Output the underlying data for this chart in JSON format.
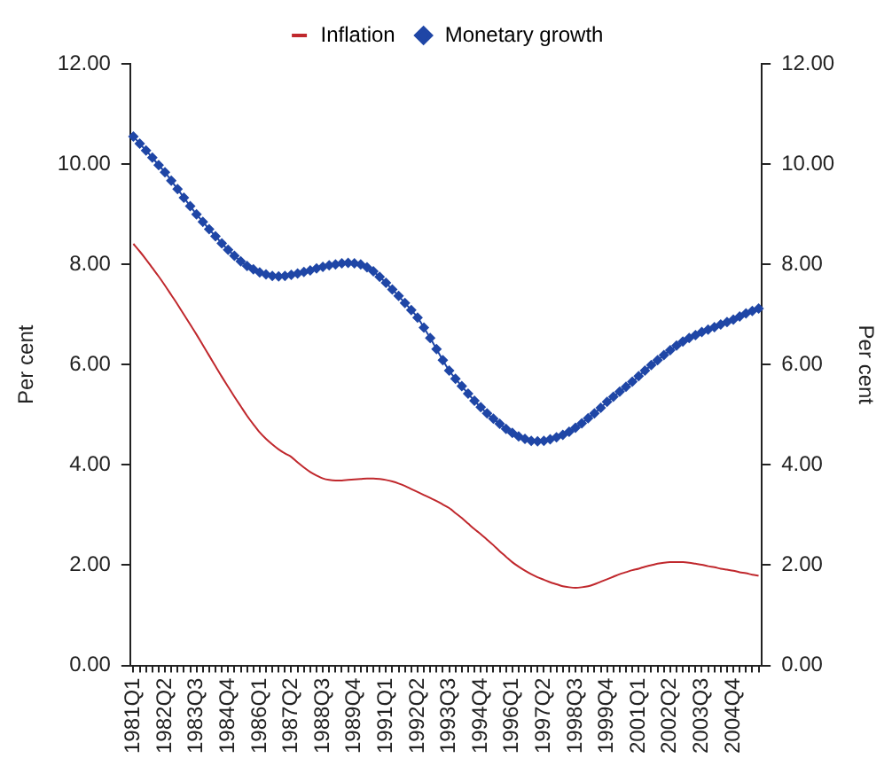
{
  "chart_data": {
    "type": "line",
    "categories": [
      "1981Q1",
      null,
      null,
      null,
      null,
      "1982Q2",
      null,
      null,
      null,
      null,
      "1983Q3",
      null,
      null,
      null,
      null,
      "1984Q4",
      null,
      null,
      null,
      null,
      "1986Q1",
      null,
      null,
      null,
      null,
      "1987Q2",
      null,
      null,
      null,
      null,
      "1988Q3",
      null,
      null,
      null,
      null,
      "1989Q4",
      null,
      null,
      null,
      null,
      "1991Q1",
      null,
      null,
      null,
      null,
      "1992Q2",
      null,
      null,
      null,
      null,
      "1993Q3",
      null,
      null,
      null,
      null,
      "1994Q4",
      null,
      null,
      null,
      null,
      "1996Q1",
      null,
      null,
      null,
      null,
      "1997Q2",
      null,
      null,
      null,
      null,
      "1998Q3",
      null,
      null,
      null,
      null,
      "1999Q4",
      null,
      null,
      null,
      null,
      "2001Q1",
      null,
      null,
      null,
      null,
      "2002Q2",
      null,
      null,
      null,
      null,
      "2003Q3",
      null,
      null,
      null,
      null,
      "2004Q4",
      null,
      null,
      null,
      null
    ],
    "series": [
      {
        "name": "Inflation",
        "color": "#c0282d",
        "marker": "none",
        "values": [
          8.41,
          8.26,
          8.1,
          7.93,
          7.76,
          7.58,
          7.39,
          7.2,
          7.0,
          6.8,
          6.6,
          6.39,
          6.18,
          5.97,
          5.76,
          5.56,
          5.36,
          5.17,
          4.98,
          4.81,
          4.65,
          4.52,
          4.41,
          4.31,
          4.23,
          4.16,
          4.05,
          3.95,
          3.86,
          3.79,
          3.73,
          3.7,
          3.69,
          3.69,
          3.7,
          3.71,
          3.72,
          3.73,
          3.73,
          3.72,
          3.7,
          3.67,
          3.63,
          3.58,
          3.52,
          3.46,
          3.4,
          3.34,
          3.28,
          3.21,
          3.14,
          3.04,
          2.94,
          2.83,
          2.72,
          2.62,
          2.51,
          2.4,
          2.28,
          2.17,
          2.06,
          1.97,
          1.89,
          1.82,
          1.76,
          1.71,
          1.66,
          1.62,
          1.58,
          1.56,
          1.55,
          1.56,
          1.58,
          1.62,
          1.67,
          1.72,
          1.77,
          1.82,
          1.86,
          1.9,
          1.93,
          1.97,
          2.0,
          2.03,
          2.05,
          2.06,
          2.06,
          2.06,
          2.05,
          2.03,
          2.01,
          1.98,
          1.96,
          1.93,
          1.91,
          1.89,
          1.86,
          1.84,
          1.81,
          1.79
        ]
      },
      {
        "name": "Monetary growth",
        "color": "#1f46a6",
        "marker": "diamond",
        "values": [
          10.55,
          10.41,
          10.27,
          10.13,
          9.98,
          9.84,
          9.67,
          9.5,
          9.33,
          9.16,
          9.0,
          8.85,
          8.7,
          8.56,
          8.42,
          8.29,
          8.17,
          8.06,
          7.97,
          7.9,
          7.84,
          7.8,
          7.77,
          7.76,
          7.77,
          7.79,
          7.82,
          7.85,
          7.88,
          7.92,
          7.95,
          7.98,
          8.0,
          8.02,
          8.03,
          8.02,
          8.0,
          7.94,
          7.86,
          7.75,
          7.63,
          7.5,
          7.37,
          7.23,
          7.09,
          6.94,
          6.74,
          6.53,
          6.31,
          6.09,
          5.88,
          5.72,
          5.57,
          5.42,
          5.28,
          5.15,
          5.03,
          4.92,
          4.82,
          4.72,
          4.64,
          4.57,
          4.52,
          4.48,
          4.47,
          4.48,
          4.51,
          4.55,
          4.6,
          4.66,
          4.74,
          4.83,
          4.93,
          5.03,
          5.14,
          5.26,
          5.36,
          5.46,
          5.56,
          5.66,
          5.77,
          5.88,
          5.99,
          6.09,
          6.19,
          6.29,
          6.38,
          6.46,
          6.53,
          6.59,
          6.65,
          6.7,
          6.75,
          6.8,
          6.85,
          6.9,
          6.96,
          7.02,
          7.07,
          7.12
        ]
      }
    ],
    "ylabel": "Per cent",
    "y2label": "Per cent",
    "ylim": [
      0,
      12
    ],
    "yticks": [
      {
        "value": 0,
        "label": "0.00"
      },
      {
        "value": 2,
        "label": "2.00"
      },
      {
        "value": 4,
        "label": "4.00"
      },
      {
        "value": 6,
        "label": "6.00"
      },
      {
        "value": 8,
        "label": "8.00"
      },
      {
        "value": 10,
        "label": "10.00"
      },
      {
        "value": 12,
        "label": "12.00"
      }
    ],
    "y2lim": [
      0,
      12
    ],
    "y2ticks": [
      {
        "value": 0,
        "label": "0.00"
      },
      {
        "value": 2,
        "label": "2.00"
      },
      {
        "value": 4,
        "label": "4.00"
      },
      {
        "value": 6,
        "label": "6.00"
      },
      {
        "value": 8,
        "label": "8.00"
      },
      {
        "value": 10,
        "label": "10.00"
      },
      {
        "value": 12,
        "label": "12.00"
      }
    ],
    "grid": false,
    "legend": "top",
    "line_style": "solid"
  }
}
